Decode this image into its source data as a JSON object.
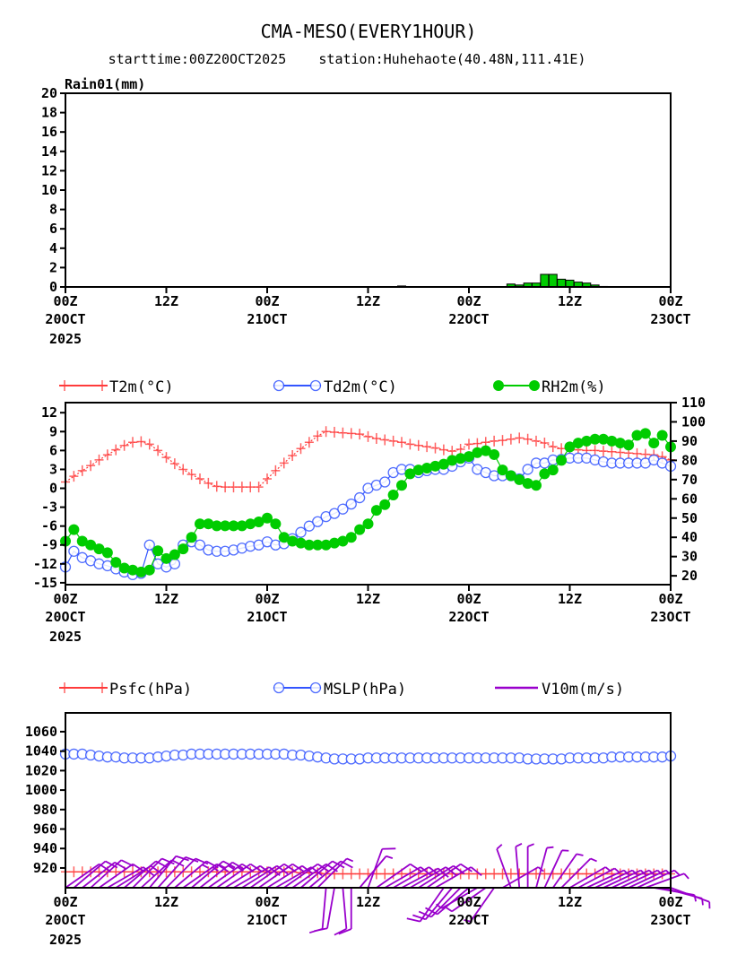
{
  "title": "CMA-MESO(EVERY1HOUR)",
  "subtitle": "starttime:00Z20OCT2025    station:Huhehaote(40.48N,111.41E)",
  "colors": {
    "t2m": "#ff3b3b",
    "td2m": "#3355ff",
    "rh2m": "#00cc00",
    "wind": "#9900cc",
    "rain": "#00cc00"
  },
  "x_axis": {
    "hours_range": [
      0,
      72
    ],
    "ticks": [
      {
        "hour": 0,
        "label": "00Z",
        "date": "20OCT",
        "year": "2025"
      },
      {
        "hour": 12,
        "label": "12Z",
        "date": "",
        "year": ""
      },
      {
        "hour": 24,
        "label": "00Z",
        "date": "21OCT",
        "year": ""
      },
      {
        "hour": 36,
        "label": "12Z",
        "date": "",
        "year": ""
      },
      {
        "hour": 48,
        "label": "00Z",
        "date": "22OCT",
        "year": ""
      },
      {
        "hour": 60,
        "label": "12Z",
        "date": "",
        "year": ""
      },
      {
        "hour": 72,
        "label": "00Z",
        "date": "23OCT",
        "year": ""
      }
    ]
  },
  "chart_data": [
    {
      "type": "bar",
      "title": "Rain01(mm)",
      "ylim": [
        0,
        20
      ],
      "yticks": [
        0,
        2,
        4,
        6,
        8,
        10,
        12,
        14,
        16,
        18,
        20
      ],
      "values": [
        0,
        0,
        0,
        0,
        0,
        0,
        0,
        0,
        0,
        0,
        0,
        0,
        0,
        0,
        0,
        0,
        0,
        0,
        0,
        0,
        0,
        0,
        0,
        0,
        0,
        0,
        0,
        0,
        0,
        0,
        0,
        0,
        0,
        0,
        0,
        0,
        0,
        0,
        0,
        0,
        0.1,
        0,
        0,
        0,
        0,
        0,
        0,
        0,
        0,
        0,
        0,
        0,
        0,
        0.3,
        0.2,
        0.4,
        0.4,
        1.3,
        1.3,
        0.8,
        0.7,
        0.5,
        0.4,
        0.2,
        0.05,
        0,
        0,
        0,
        0,
        0,
        0,
        0,
        0
      ]
    },
    {
      "type": "line",
      "legend": [
        {
          "name": "T2m(°C)",
          "key": "t2m"
        },
        {
          "name": "Td2m(°C)",
          "key": "td2m"
        },
        {
          "name": "RH2m(%)",
          "key": "rh2m"
        }
      ],
      "ylim_left": [
        -15.3,
        13.6
      ],
      "yticks_left": [
        -15,
        -12,
        -9,
        -6,
        -3,
        0,
        3,
        6,
        9,
        12
      ],
      "ylim_right": [
        15.4,
        110
      ],
      "yticks_right": [
        20,
        30,
        40,
        50,
        60,
        70,
        80,
        90,
        100,
        110
      ],
      "series": [
        {
          "key": "t2m",
          "name": "T2m(°C)",
          "axis": "left",
          "values": [
            1.0,
            1.9,
            2.8,
            3.6,
            4.5,
            5.3,
            6.1,
            6.8,
            7.3,
            7.4,
            7.0,
            6.0,
            4.9,
            3.9,
            3.0,
            2.2,
            1.5,
            0.8,
            0.3,
            0.2,
            0.2,
            0.2,
            0.2,
            0.2,
            1.5,
            2.8,
            4.0,
            5.2,
            6.3,
            7.3,
            8.3,
            9.0,
            8.9,
            8.8,
            8.7,
            8.6,
            8.2,
            7.9,
            7.7,
            7.5,
            7.3,
            7.0,
            6.8,
            6.6,
            6.4,
            6.1,
            5.9,
            6.2,
            7.0,
            7.1,
            7.3,
            7.5,
            7.6,
            7.8,
            8.0,
            7.8,
            7.5,
            7.2,
            6.6,
            6.3,
            6.2,
            6.1,
            6.0,
            6.0,
            5.9,
            5.8,
            5.7,
            5.6,
            5.5,
            5.4,
            5.3,
            5.0,
            4.5
          ]
        },
        {
          "key": "td2m",
          "name": "Td2m(°C)",
          "axis": "left",
          "values": [
            -12.5,
            -10,
            -11,
            -11.5,
            -12,
            -12.3,
            -12.8,
            -13.3,
            -13.7,
            -13.5,
            -9,
            -12,
            -12.5,
            -12,
            -9,
            -8.5,
            -9,
            -9.8,
            -10,
            -10,
            -9.8,
            -9.5,
            -9.2,
            -9,
            -8.5,
            -9,
            -8.8,
            -8,
            -7,
            -6,
            -5.3,
            -4.5,
            -4,
            -3.3,
            -2.5,
            -1.5,
            0,
            0.5,
            1,
            2.5,
            3,
            3,
            2.5,
            2.8,
            3,
            3,
            3.5,
            4.2,
            4.8,
            3,
            2.5,
            2,
            2,
            2,
            1.5,
            3,
            4,
            4,
            4.5,
            4.6,
            4.8,
            4.8,
            4.8,
            4.5,
            4.2,
            4,
            4,
            4,
            4,
            4,
            4.5,
            4,
            3.5
          ]
        },
        {
          "key": "rh2m",
          "name": "RH2m(%)",
          "axis": "right",
          "values": [
            38,
            44,
            38,
            36,
            34,
            32,
            27,
            24,
            23,
            22,
            23,
            33,
            29,
            31,
            34,
            40,
            47,
            47,
            46,
            46,
            46,
            46,
            47,
            48,
            50,
            47,
            40,
            38,
            37,
            36,
            36,
            36,
            37,
            38,
            40,
            44,
            47,
            54,
            57,
            62,
            67,
            73,
            75,
            76,
            77,
            78,
            80,
            81,
            82,
            84,
            85,
            83,
            75,
            72,
            70,
            68,
            67,
            73,
            75,
            80,
            87,
            89,
            90,
            91,
            91,
            90,
            89,
            88,
            93,
            94,
            89,
            93,
            87
          ]
        }
      ]
    },
    {
      "type": "line",
      "legend": [
        {
          "name": "Psfc(hPa)",
          "key": "t2m"
        },
        {
          "name": "MSLP(hPa)",
          "key": "td2m"
        },
        {
          "name": "V10m(m/s)",
          "key": "wind"
        }
      ],
      "ylim": [
        899.7,
        1079.3
      ],
      "yticks": [
        920,
        940,
        960,
        980,
        1000,
        1020,
        1040,
        1060
      ],
      "series": [
        {
          "key": "psfc",
          "name": "Psfc(hPa)",
          "values": [
            916,
            916,
            916,
            916,
            916,
            916,
            916,
            916,
            916,
            916,
            916,
            916,
            916,
            916,
            916,
            916,
            916,
            916,
            916,
            916,
            916,
            916,
            916,
            916,
            916,
            916,
            916,
            916,
            915,
            915,
            915,
            914,
            914,
            914,
            914,
            914,
            914,
            914,
            914,
            914,
            914,
            914,
            914,
            914,
            914,
            914,
            914,
            914,
            914,
            914,
            914,
            914,
            914,
            914,
            914,
            914,
            914,
            914,
            914,
            914,
            914,
            914,
            914,
            914,
            914,
            914,
            914,
            914,
            914,
            914,
            914,
            914,
            914
          ]
        },
        {
          "key": "mslp",
          "name": "MSLP(hPa)",
          "values": [
            1037,
            1037,
            1037,
            1036,
            1035,
            1034,
            1034,
            1033,
            1033,
            1033,
            1033,
            1034,
            1035,
            1036,
            1036,
            1037,
            1037,
            1037,
            1037,
            1037,
            1037,
            1037,
            1037,
            1037,
            1037,
            1037,
            1037,
            1036,
            1036,
            1035,
            1034,
            1033,
            1032,
            1032,
            1032,
            1032,
            1033,
            1033,
            1033,
            1033,
            1033,
            1033,
            1033,
            1033,
            1033,
            1033,
            1033,
            1033,
            1033,
            1033,
            1033,
            1033,
            1033,
            1033,
            1033,
            1032,
            1032,
            1032,
            1032,
            1032,
            1033,
            1033,
            1033,
            1033,
            1033,
            1034,
            1034,
            1034,
            1034,
            1034,
            1034,
            1034,
            1035
          ]
        },
        {
          "key": "wind",
          "name": "V10m(m/s)",
          "direction_deg": [
            55,
            50,
            52,
            48,
            55,
            60,
            58,
            50,
            45,
            48,
            40,
            42,
            45,
            50,
            55,
            50,
            52,
            55,
            55,
            58,
            60,
            58,
            55,
            55,
            58,
            60,
            55,
            55,
            50,
            50,
            45,
            185,
            190,
            175,
            180,
            40,
            20,
            55,
            60,
            60,
            62,
            60,
            58,
            55,
            60,
            215,
            220,
            225,
            230,
            240,
            235,
            215,
            60,
            340,
            355,
            0,
            15,
            25,
            35,
            45,
            60,
            62,
            65,
            65,
            65,
            65,
            65,
            65,
            65,
            70,
            100,
            105,
            110
          ],
          "speed_ms": [
            8,
            8,
            8,
            8,
            8,
            8,
            8,
            8,
            8,
            8,
            10,
            10,
            10,
            12,
            12,
            12,
            12,
            12,
            10,
            10,
            10,
            8,
            8,
            8,
            8,
            8,
            8,
            8,
            8,
            8,
            6,
            8,
            8,
            8,
            8,
            6,
            8,
            8,
            8,
            8,
            8,
            8,
            8,
            8,
            8,
            8,
            8,
            8,
            8,
            6,
            6,
            6,
            6,
            6,
            6,
            6,
            6,
            6,
            6,
            6,
            6,
            6,
            6,
            6,
            6,
            6,
            6,
            6,
            6,
            6,
            6,
            6,
            6
          ]
        }
      ]
    }
  ]
}
